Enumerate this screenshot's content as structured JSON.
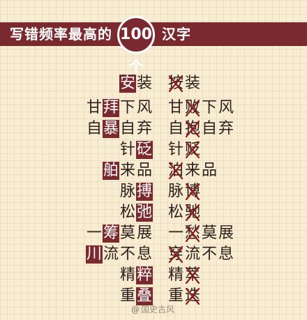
{
  "header": {
    "title_before": "写错频率最高的",
    "badge": "100个",
    "title_after": "汉字"
  },
  "rows": [
    {
      "correct": {
        "pre": "",
        "hl": "安",
        "post": "装"
      },
      "wrong": {
        "pre": "",
        "x": "按",
        "post": "装"
      }
    },
    {
      "correct": {
        "pre": "甘",
        "hl": "拜",
        "post": "下风"
      },
      "wrong": {
        "pre": "甘",
        "x": "败",
        "post": "下风"
      }
    },
    {
      "correct": {
        "pre": "自",
        "hl": "暴",
        "post": "自弃"
      },
      "wrong": {
        "pre": "自",
        "x": "抱",
        "post": "自弃"
      }
    },
    {
      "correct": {
        "pre": "针",
        "hl": "砭",
        "post": ""
      },
      "wrong": {
        "pre": "针",
        "x": "贬",
        "post": ""
      }
    },
    {
      "correct": {
        "pre": "",
        "hl": "舶",
        "post": "来品"
      },
      "wrong": {
        "pre": "",
        "x": "泊",
        "post": "来品"
      }
    },
    {
      "correct": {
        "pre": "脉",
        "hl": "搏",
        "post": ""
      },
      "wrong": {
        "pre": "脉",
        "x": "博",
        "post": ""
      }
    },
    {
      "correct": {
        "pre": "松",
        "hl": "弛",
        "post": ""
      },
      "wrong": {
        "pre": "松",
        "x": "驰",
        "post": ""
      }
    },
    {
      "correct": {
        "pre": "一",
        "hl": "筹",
        "post": "莫展"
      },
      "wrong": {
        "pre": "一",
        "x": "愁",
        "post": "莫展"
      }
    },
    {
      "correct": {
        "pre": "",
        "hl": "川",
        "post": "流不息"
      },
      "wrong": {
        "pre": "",
        "x": "穿",
        "post": "流不息"
      }
    },
    {
      "correct": {
        "pre": "精",
        "hl": "粹",
        "post": ""
      },
      "wrong": {
        "pre": "精",
        "x": "萃",
        "post": ""
      }
    },
    {
      "correct": {
        "pre": "重",
        "hl": "叠",
        "post": ""
      },
      "wrong": {
        "pre": "重",
        "x": "迭",
        "post": ""
      }
    }
  ],
  "watermark": {
    "at": "@",
    "name": "国史古风"
  },
  "colors": {
    "accent": "#7a2a2f",
    "strike": "#8b1a1f",
    "text": "#2a1f1c",
    "background": "#f8ecd2"
  }
}
